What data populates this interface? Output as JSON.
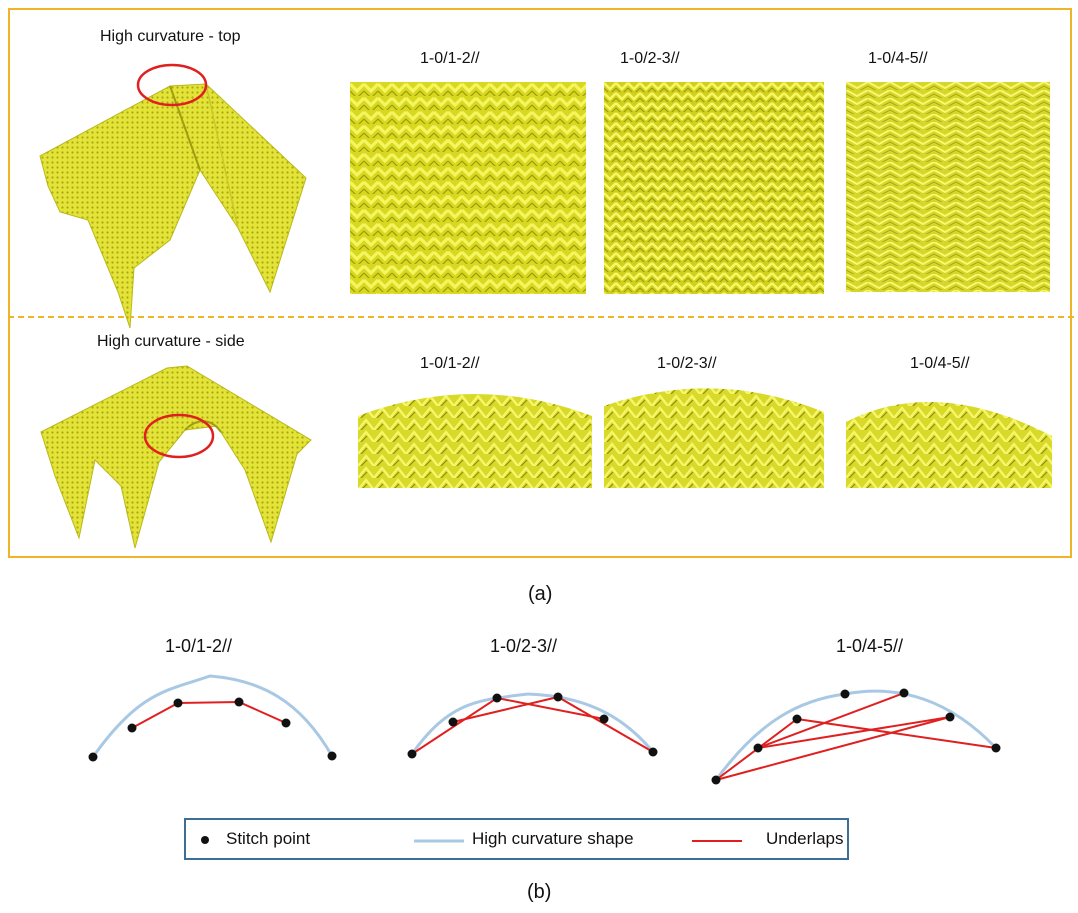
{
  "panel_a": {
    "top_row": {
      "title": "High curvature - top",
      "patterns": [
        "1-0/1-2//",
        "1-0/2-3//",
        "1-0/4-5//"
      ]
    },
    "side_row": {
      "title": "High curvature - side",
      "patterns": [
        "1-0/1-2//",
        "1-0/2-3//",
        "1-0/4-5//"
      ]
    },
    "caption": "(a)"
  },
  "panel_b": {
    "patterns": [
      "1-0/1-2//",
      "1-0/2-3//",
      "1-0/4-5//"
    ],
    "legend": {
      "stitch_point": "Stitch point",
      "shape": "High curvature shape",
      "underlaps": "Underlaps"
    },
    "caption": "(b)"
  },
  "colors": {
    "frame": "#F0B429",
    "fabric": "#E6E63A",
    "highlight": "#E02020",
    "curve": "#A9C8E4",
    "underlap": "#E02020",
    "legend_border": "#3C6E96"
  }
}
